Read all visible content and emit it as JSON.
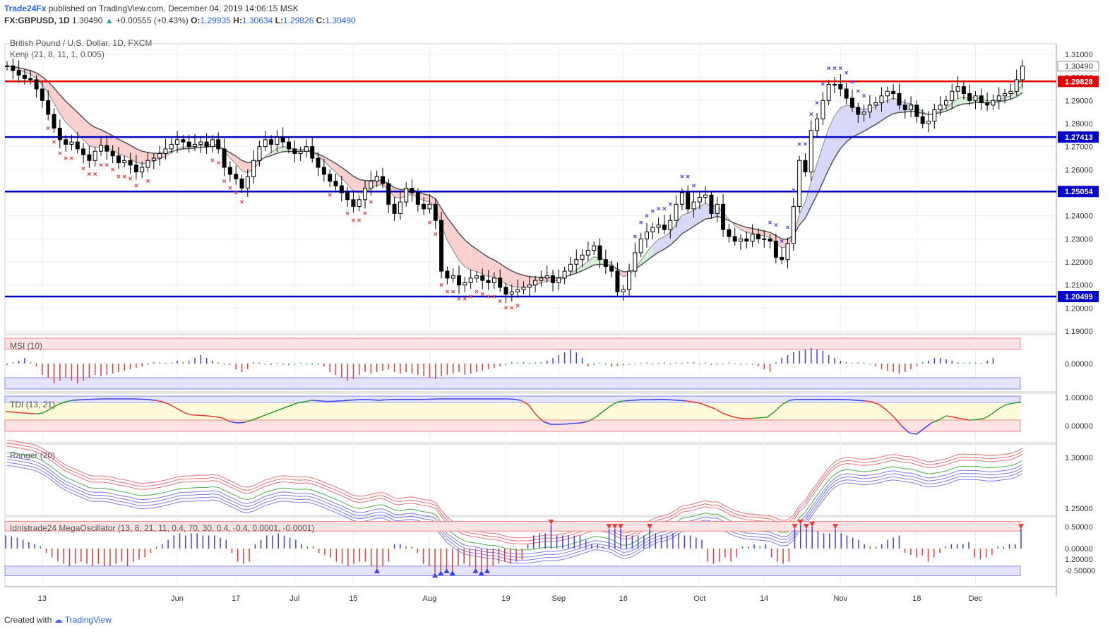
{
  "header": {
    "publisher": "Trade24Fx",
    "published_text": "published on TradingView.com, December 04, 2019 14:06:15 MSK",
    "symbol": "FX:GBPUSD, 1D",
    "last": "1.30490",
    "change": "+0.00555 (+0.43%)",
    "open_label": "O:",
    "open": "1.29935",
    "high_label": "H:",
    "high": "1.30634",
    "low_label": "L:",
    "low": "1.29826",
    "close_label": "C:",
    "close": "1.30490"
  },
  "legend": {
    "main_title": "British Pound / U.S. Dollar, 1D, FXCM",
    "indicator": "Kenji (21, 8, 11, 1, 0.005)"
  },
  "footer": {
    "created_with": "Created with",
    "brand": "TradingView"
  },
  "colors": {
    "bull": "#ffffff",
    "bear": "#000000",
    "support_line": "#0000c8",
    "resistance_line": "#e00000",
    "sell": "#e53935",
    "buy": "#3d3df0",
    "grid": "#eeeeee",
    "upper_fill": "#f8d0d0",
    "lower_fill": "#d8d8f8"
  },
  "chart_data": [
    {
      "type": "candlestick",
      "title": "British Pound / U.S. Dollar, 1D, FXCM",
      "ylim": [
        1.19,
        1.31
      ],
      "y_ticks": [
        "1.31000",
        "1.30490",
        "1.30000",
        "1.29000",
        "1.28000",
        "1.27000",
        "1.26000",
        "1.25000",
        "1.24000",
        "1.23000",
        "1.22000",
        "1.21000",
        "1.20000",
        "1.19000"
      ],
      "x_ticks": [
        {
          "label": "13",
          "index": 6
        },
        {
          "label": "Jun",
          "index": 29
        },
        {
          "label": "17",
          "index": 39
        },
        {
          "label": "Jul",
          "index": 49
        },
        {
          "label": "15",
          "index": 59
        },
        {
          "label": "Aug",
          "index": 72
        },
        {
          "label": "19",
          "index": 85
        },
        {
          "label": "Sep",
          "index": 94
        },
        {
          "label": "16",
          "index": 105
        },
        {
          "label": "Oct",
          "index": 118
        },
        {
          "label": "14",
          "index": 129
        },
        {
          "label": "Nov",
          "index": 142
        },
        {
          "label": "18",
          "index": 155
        },
        {
          "label": "Dec",
          "index": 165
        }
      ],
      "horizontal_levels": [
        {
          "value": 1.29828,
          "label": "1.29828",
          "color": "#e00000"
        },
        {
          "value": 1.27413,
          "label": "1.27413",
          "color": "#0000c8"
        },
        {
          "value": 1.25054,
          "label": "1.25054",
          "color": "#0000c8"
        },
        {
          "value": 1.20499,
          "label": "1.20499",
          "color": "#0000c8"
        }
      ],
      "last_price": {
        "value": 1.3049,
        "label": "1.30490"
      },
      "closes": [
        1.305,
        1.303,
        1.301,
        1.2995,
        1.299,
        1.295,
        1.29,
        1.284,
        1.278,
        1.273,
        1.271,
        1.272,
        1.269,
        1.2665,
        1.264,
        1.268,
        1.2705,
        1.268,
        1.266,
        1.263,
        1.264,
        1.262,
        1.259,
        1.261,
        1.264,
        1.265,
        1.267,
        1.269,
        1.271,
        1.273,
        1.272,
        1.27,
        1.271,
        1.272,
        1.27,
        1.273,
        1.269,
        1.261,
        1.258,
        1.256,
        1.252,
        1.257,
        1.264,
        1.27,
        1.273,
        1.271,
        1.274,
        1.272,
        1.269,
        1.267,
        1.268,
        1.27,
        1.265,
        1.261,
        1.258,
        1.255,
        1.253,
        1.25,
        1.247,
        1.244,
        1.247,
        1.252,
        1.255,
        1.257,
        1.254,
        1.245,
        1.241,
        1.246,
        1.252,
        1.25,
        1.245,
        1.243,
        1.245,
        1.238,
        1.216,
        1.213,
        1.214,
        1.21,
        1.211,
        1.213,
        1.214,
        1.212,
        1.211,
        1.213,
        1.209,
        1.206,
        1.207,
        1.208,
        1.209,
        1.21,
        1.212,
        1.213,
        1.214,
        1.211,
        1.213,
        1.216,
        1.219,
        1.221,
        1.223,
        1.225,
        1.227,
        1.221,
        1.218,
        1.216,
        1.207,
        1.208,
        1.216,
        1.224,
        1.23,
        1.233,
        1.235,
        1.236,
        1.234,
        1.238,
        1.245,
        1.25,
        1.243,
        1.246,
        1.248,
        1.249,
        1.241,
        1.245,
        1.234,
        1.231,
        1.229,
        1.23,
        1.229,
        1.232,
        1.23,
        1.23,
        1.229,
        1.222,
        1.221,
        1.228,
        1.244,
        1.264,
        1.259,
        1.277,
        1.282,
        1.29,
        1.297,
        1.297,
        1.295,
        1.291,
        1.287,
        1.284,
        1.285,
        1.288,
        1.289,
        1.292,
        1.294,
        1.293,
        1.288,
        1.286,
        1.288,
        1.283,
        1.28,
        1.281,
        1.286,
        1.288,
        1.29,
        1.294,
        1.296,
        1.293,
        1.29,
        1.292,
        1.289,
        1.288,
        1.29,
        1.292,
        1.293,
        1.294,
        1.299,
        1.3049
      ]
    },
    {
      "type": "bar",
      "title": "MSI (10)",
      "ylim": [
        -0.1,
        0.1
      ],
      "y_ticks": [
        "0.00000"
      ],
      "values": [
        -0.005,
        0.005,
        0.01,
        0.02,
        0.005,
        -0.01,
        -0.04,
        -0.05,
        -0.07,
        -0.06,
        -0.05,
        -0.06,
        -0.07,
        -0.06,
        -0.05,
        -0.04,
        -0.045,
        -0.04,
        -0.035,
        -0.03,
        -0.025,
        -0.02,
        -0.015,
        -0.01,
        -0.005,
        0.005,
        0.004,
        0.003,
        0.002,
        0.01,
        0.005,
        0.01,
        0.02,
        0.03,
        0.02,
        0.01,
        0.004,
        -0.002,
        -0.005,
        -0.02,
        -0.03,
        -0.02,
        0.005,
        0.002,
        -0.002,
        -0.005,
        0.003,
        -0.004,
        -0.006,
        -0.004,
        0.003,
        -0.002,
        -0.004,
        -0.005,
        -0.01,
        -0.03,
        -0.04,
        -0.05,
        -0.06,
        -0.055,
        -0.04,
        -0.03,
        -0.035,
        -0.03,
        -0.025,
        -0.02,
        -0.03,
        -0.035,
        -0.03,
        -0.035,
        -0.04,
        -0.045,
        -0.05,
        -0.055,
        -0.045,
        -0.04,
        -0.035,
        -0.03,
        -0.04,
        -0.035,
        -0.03,
        -0.025,
        -0.02,
        -0.015,
        -0.01,
        -0.005,
        0.005,
        0.004,
        0.005,
        0.003,
        0.004,
        0.005,
        0.01,
        0.02,
        0.03,
        0.04,
        0.05,
        0.04,
        0.02,
        -0.01,
        -0.005,
        0.003,
        -0.004,
        -0.01,
        -0.008,
        -0.006,
        -0.004,
        -0.003,
        0.003,
        0.004,
        -0.002,
        0.003,
        0.004,
        -0.003,
        0.004,
        0.003,
        0.002,
        0.005,
        -0.003,
        0.004,
        -0.005,
        -0.004,
        -0.003,
        0.002,
        -0.003,
        -0.004,
        -0.003,
        -0.002,
        -0.01,
        -0.02,
        -0.03,
        0.005,
        0.02,
        0.03,
        0.04,
        0.045,
        0.05,
        0.055,
        0.05,
        0.045,
        0.03,
        0.02,
        0.01,
        0.005,
        0.003,
        0.004,
        0.002,
        -0.003,
        -0.01,
        -0.02,
        -0.025,
        -0.03,
        -0.035,
        -0.03,
        -0.02,
        -0.01,
        0.005,
        0.01,
        0.02,
        0.02,
        0.015,
        0.01,
        0.005,
        0.003,
        0.004,
        0.002,
        0.003,
        0.01,
        0.02
      ]
    },
    {
      "type": "line",
      "title": "TDI (13, 21)",
      "ylim": [
        -0.25,
        1.1
      ],
      "y_ticks": [
        "1.00000",
        "0.00000"
      ],
      "values": [
        0.5,
        0.48,
        0.46,
        0.44,
        0.42,
        0.45,
        0.6,
        0.75,
        0.85,
        0.9,
        0.92,
        0.93,
        0.94,
        0.95,
        0.95,
        0.95,
        0.95,
        0.95,
        0.94,
        0.93,
        0.9,
        0.85,
        0.75,
        0.6,
        0.45,
        0.38,
        0.37,
        0.35,
        0.32,
        0.28,
        0.15,
        0.1,
        0.12,
        0.2,
        0.3,
        0.4,
        0.5,
        0.6,
        0.7,
        0.8,
        0.85,
        0.9,
        0.88,
        0.86,
        0.87,
        0.88,
        0.9,
        0.92,
        0.93,
        0.92,
        0.9,
        0.92,
        0.93,
        0.93,
        0.93,
        0.93,
        0.93,
        0.94,
        0.95,
        0.95,
        0.95,
        0.95,
        0.95,
        0.95,
        0.95,
        0.95,
        0.95,
        0.95,
        0.94,
        0.9,
        0.75,
        0.4,
        0.15,
        0.05,
        0.05,
        0.06,
        0.08,
        0.1,
        0.15,
        0.3,
        0.5,
        0.7,
        0.85,
        0.88,
        0.9,
        0.92,
        0.92,
        0.93,
        0.93,
        0.92,
        0.9,
        0.88,
        0.85,
        0.8,
        0.7,
        0.6,
        0.45,
        0.35,
        0.28,
        0.25,
        0.26,
        0.28,
        0.3,
        0.5,
        0.75,
        0.9,
        0.93,
        0.93,
        0.93,
        0.93,
        0.93,
        0.93,
        0.93,
        0.92,
        0.9,
        0.88,
        0.85,
        0.75,
        0.55,
        0.3,
        0.0,
        -0.25,
        -0.3,
        -0.1,
        0.1,
        0.2,
        0.35,
        0.3,
        0.25,
        0.2,
        0.22,
        0.25,
        0.4,
        0.6,
        0.75,
        0.8,
        0.85
      ]
    },
    {
      "type": "line",
      "title": "Ranger (20)",
      "ylim": [
        1.19,
        1.33
      ],
      "y_ticks": [
        "1.30000",
        "1.25000",
        "1.20000"
      ]
    },
    {
      "type": "bar",
      "title": "Idnistrade24 MegaOscillator (13, 8, 21, 11, 0.4, 70, 30, 0.4, -0.4, 0.0001, -0.0001)",
      "ylim": [
        -0.8,
        0.8
      ],
      "y_ticks": [
        "0.50000",
        "0.00000",
        "-0.50000"
      ],
      "values": [
        0.3,
        0.28,
        0.25,
        0.2,
        0.15,
        0.1,
        0.05,
        -0.1,
        -0.2,
        -0.3,
        -0.35,
        -0.4,
        -0.35,
        -0.3,
        -0.35,
        -0.4,
        -0.35,
        -0.4,
        -0.4,
        -0.35,
        -0.3,
        -0.4,
        -0.3,
        -0.25,
        -0.2,
        -0.1,
        0.05,
        0.1,
        0.2,
        0.3,
        0.35,
        0.3,
        0.35,
        0.35,
        0.3,
        0.3,
        0.3,
        0.25,
        0.2,
        -0.1,
        -0.3,
        -0.35,
        -0.3,
        0.1,
        0.2,
        0.3,
        0.3,
        0.35,
        0.3,
        0.25,
        0.2,
        0.1,
        0.05,
        0.05,
        -0.1,
        -0.15,
        -0.2,
        -0.3,
        -0.35,
        -0.4,
        -0.35,
        -0.3,
        -0.3,
        -0.4,
        -0.45,
        -0.4,
        -0.3,
        0.1,
        0.1,
        0.05,
        0.05,
        -0.1,
        -0.35,
        -0.4,
        -0.55,
        -0.5,
        -0.45,
        -0.5,
        -0.4,
        -0.35,
        -0.4,
        -0.45,
        -0.5,
        -0.45,
        -0.4,
        -0.35,
        -0.3,
        -0.35,
        -0.3,
        -0.25,
        0.1,
        0.3,
        0.35,
        0.35,
        0.55,
        0.3,
        0.3,
        0.3,
        0.3,
        0.3,
        0.2,
        0.1,
        0.1,
        0.05,
        0.45,
        0.45,
        0.45,
        0.3,
        0.3,
        0.3,
        0.3,
        0.45,
        0.35,
        0.3,
        0.3,
        0.35,
        0.35,
        0.3,
        0.3,
        0.25,
        0.2,
        -0.3,
        -0.35,
        -0.3,
        -0.2,
        -0.3,
        -0.2,
        0.05,
        0.05,
        0.1,
        0.05,
        0.1,
        -0.2,
        -0.3,
        -0.35,
        -0.3,
        0.45,
        0.55,
        0.45,
        0.5,
        0.4,
        0.35,
        0.35,
        0.45,
        0.35,
        0.3,
        0.25,
        0.2,
        0.1,
        0.05,
        0.05,
        0.1,
        0.2,
        0.25,
        0.3,
        -0.1,
        -0.15,
        -0.2,
        -0.15,
        -0.3,
        -0.2,
        -0.1,
        0.05,
        0.1,
        0.1,
        0.1,
        0.15,
        -0.2,
        -0.25,
        -0.2,
        -0.15,
        0.05,
        0.05,
        0.1,
        0.1,
        0.45
      ]
    }
  ]
}
